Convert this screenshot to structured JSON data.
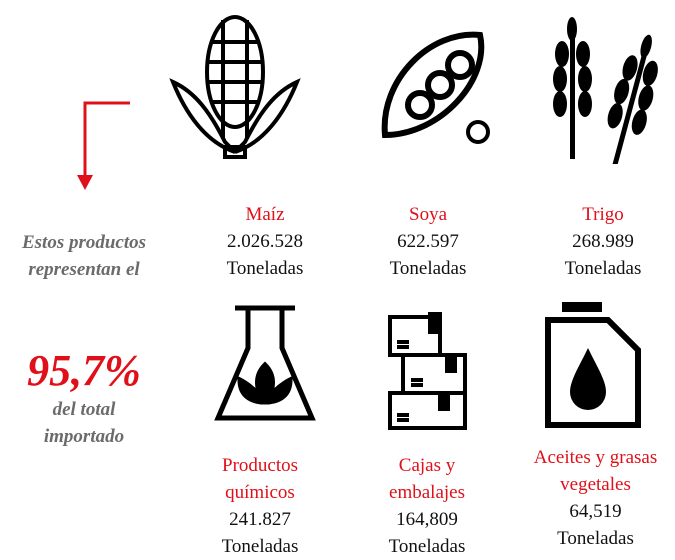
{
  "summary": {
    "intro": "Estos productos representan el",
    "percent": "95,7%",
    "outro": "del total importado"
  },
  "items": [
    {
      "name": "Maíz",
      "amount": "2.026.528",
      "unit": "Toneladas"
    },
    {
      "name": "Soya",
      "amount": "622.597",
      "unit": "Toneladas"
    },
    {
      "name": "Trigo",
      "amount": "268.989",
      "unit": "Toneladas"
    },
    {
      "name": "Productos químicos",
      "amount": "241.827",
      "unit": "Toneladas"
    },
    {
      "name": "Cajas y embalajes",
      "amount": "164,809",
      "unit": "Toneladas"
    },
    {
      "name": "Aceites y grasas vegetales",
      "amount": "64,519",
      "unit": "Toneladas"
    }
  ]
}
